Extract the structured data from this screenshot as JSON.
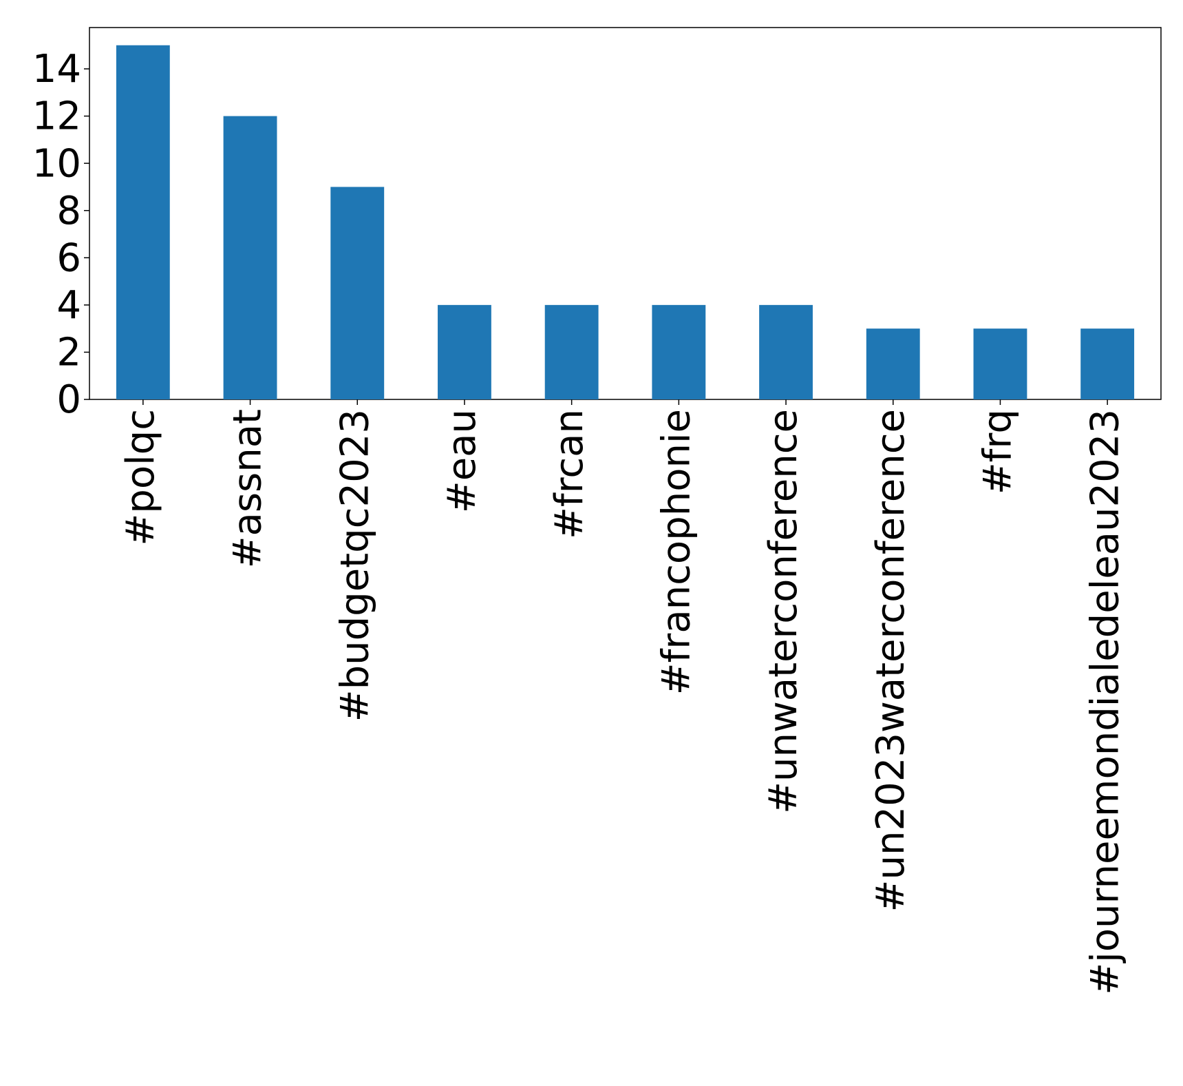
{
  "chart_data": {
    "type": "bar",
    "categories": [
      "#polqc",
      "#assnat",
      "#budgetqc2023",
      "#eau",
      "#frcan",
      "#francophonie",
      "#unwaterconference",
      "#un2023waterconference",
      "#frq",
      "#journeemondialedeleau2023"
    ],
    "values": [
      15,
      12,
      9,
      4,
      4,
      4,
      4,
      3,
      3,
      3
    ],
    "color": "#1f77b4",
    "ylim": [
      0,
      15.75
    ],
    "yticks": [
      0,
      2,
      4,
      6,
      8,
      10,
      12,
      14
    ],
    "grid": false
  }
}
